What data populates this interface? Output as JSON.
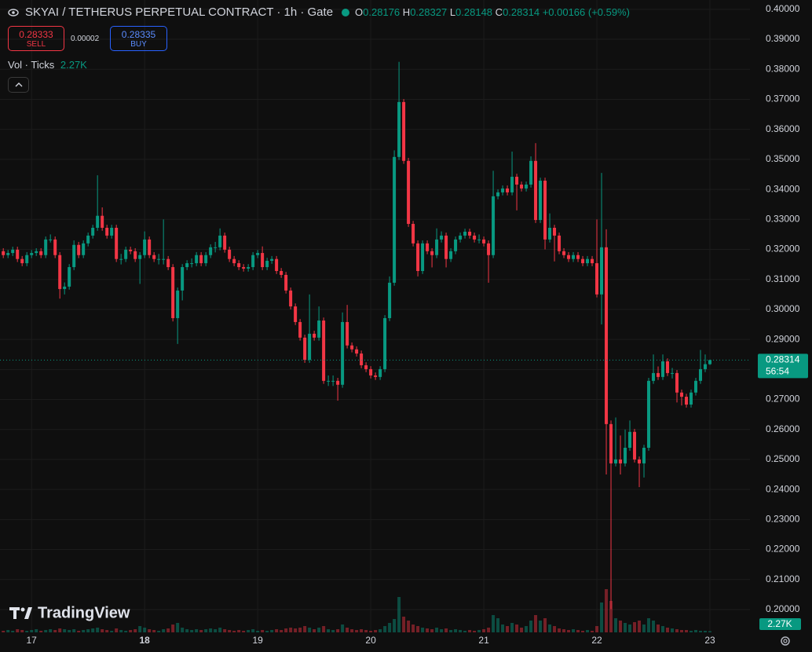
{
  "chart_data": {
    "type": "candlestick",
    "title": "SKYAI / TETHERUS PERPETUAL CONTRACT · 1h · Gate",
    "ohlc_labels": [
      "O",
      "H",
      "L",
      "C"
    ],
    "change": "+0.00166 (+0.59%)",
    "sell": {
      "price": 0.28333,
      "label": "SELL"
    },
    "spread": 2e-05,
    "buy": {
      "price": 0.28335,
      "label": "BUY"
    },
    "volume_title": "Vol · Ticks",
    "volume_label": "2.27K",
    "countdown": "56:54",
    "watermark": "TradingView",
    "up_color": "#089981",
    "down_color": "#f23645",
    "grid": true,
    "xlim": [
      -6.7,
      152.5
    ],
    "xticks": [
      {
        "value": 0,
        "label": "17"
      },
      {
        "value": 24,
        "label": "18"
      },
      {
        "value": 48,
        "label": "19"
      },
      {
        "value": 72,
        "label": "20"
      },
      {
        "value": 96,
        "label": "21"
      },
      {
        "value": 120,
        "label": "22"
      },
      {
        "value": 144,
        "label": "23"
      }
    ],
    "ylim": [
      0.1924,
      0.4031
    ],
    "yticks": [
      {
        "value": 0.2,
        "label": "0.20000"
      },
      {
        "value": 0.21,
        "label": "0.21000"
      },
      {
        "value": 0.22,
        "label": "0.22000"
      },
      {
        "value": 0.23,
        "label": "0.23000"
      },
      {
        "value": 0.24,
        "label": "0.24000"
      },
      {
        "value": 0.25,
        "label": "0.25000"
      },
      {
        "value": 0.26,
        "label": "0.26000"
      },
      {
        "value": 0.27,
        "label": "0.27000"
      },
      {
        "value": 0.28,
        "label": "0.28000"
      },
      {
        "value": 0.29,
        "label": "0.29000"
      },
      {
        "value": 0.3,
        "label": "0.30000"
      },
      {
        "value": 0.31,
        "label": "0.31000"
      },
      {
        "value": 0.32,
        "label": "0.32000"
      },
      {
        "value": 0.33,
        "label": "0.33000"
      },
      {
        "value": 0.34,
        "label": "0.34000"
      },
      {
        "value": 0.35,
        "label": "0.35000"
      },
      {
        "value": 0.36,
        "label": "0.36000"
      },
      {
        "value": 0.37,
        "label": "0.37000"
      },
      {
        "value": 0.38,
        "label": "0.38000"
      },
      {
        "value": 0.39,
        "label": "0.39000"
      },
      {
        "value": 0.4,
        "label": "0.40000"
      }
    ],
    "x": [
      -6,
      -5,
      -4,
      -3,
      -2,
      -1,
      0,
      1,
      2,
      3,
      4,
      5,
      6,
      7,
      8,
      9,
      10,
      11,
      12,
      13,
      14,
      15,
      16,
      17,
      18,
      19,
      20,
      21,
      22,
      23,
      24,
      25,
      26,
      27,
      28,
      29,
      30,
      31,
      32,
      33,
      34,
      35,
      36,
      37,
      38,
      39,
      40,
      41,
      42,
      43,
      44,
      45,
      46,
      47,
      48,
      49,
      50,
      51,
      52,
      53,
      54,
      55,
      56,
      57,
      58,
      59,
      60,
      61,
      62,
      63,
      64,
      65,
      66,
      67,
      68,
      69,
      70,
      71,
      72,
      73,
      74,
      75,
      76,
      77,
      78,
      79,
      80,
      81,
      82,
      83,
      84,
      85,
      86,
      87,
      88,
      89,
      90,
      91,
      92,
      93,
      94,
      95,
      96,
      97,
      98,
      99,
      100,
      101,
      102,
      103,
      104,
      105,
      106,
      107,
      108,
      109,
      110,
      111,
      112,
      113,
      114,
      115,
      116,
      117,
      118,
      119,
      120,
      121,
      122,
      123,
      124,
      125,
      126,
      127,
      128,
      129,
      130,
      131,
      132,
      133,
      134,
      135,
      136,
      137,
      138,
      139,
      140,
      141,
      142,
      143,
      144
    ],
    "open": [
      0.3194,
      0.3181,
      0.3188,
      0.3199,
      0.3168,
      0.3154,
      0.3181,
      0.3188,
      0.3194,
      0.3181,
      0.3233,
      0.3233,
      0.3181,
      0.3068,
      0.3076,
      0.3141,
      0.3215,
      0.3181,
      0.322,
      0.3246,
      0.3272,
      0.3312,
      0.3272,
      0.3246,
      0.3272,
      0.3168,
      0.3168,
      0.3199,
      0.3194,
      0.3168,
      0.3181,
      0.3233,
      0.3181,
      0.3168,
      0.3168,
      0.3168,
      0.3141,
      0.2971,
      0.3063,
      0.3141,
      0.3154,
      0.3154,
      0.3181,
      0.3154,
      0.3181,
      0.3207,
      0.3207,
      0.3246,
      0.3199,
      0.3168,
      0.3154,
      0.3141,
      0.3136,
      0.3141,
      0.3181,
      0.3188,
      0.3141,
      0.3162,
      0.3168,
      0.3128,
      0.3115,
      0.3063,
      0.301,
      0.2958,
      0.2906,
      0.2832,
      0.2919,
      0.2906,
      0.2963,
      0.2762,
      0.2762,
      0.2762,
      0.2749,
      0.2958,
      0.288,
      0.2867,
      0.2853,
      0.2814,
      0.2801,
      0.278,
      0.2775,
      0.2801,
      0.2971,
      0.3089,
      0.3508,
      0.3691,
      0.3495,
      0.3285,
      0.322,
      0.3128,
      0.322,
      0.3194,
      0.3181,
      0.3233,
      0.3246,
      0.3168,
      0.3194,
      0.3233,
      0.3246,
      0.3259,
      0.3246,
      0.3233,
      0.3233,
      0.322,
      0.3181,
      0.3377,
      0.339,
      0.3403,
      0.339,
      0.3442,
      0.3416,
      0.3403,
      0.3416,
      0.3495,
      0.3298,
      0.3429,
      0.3233,
      0.3272,
      0.3246,
      0.3194,
      0.3181,
      0.3168,
      0.3181,
      0.3168,
      0.3154,
      0.3168,
      0.3154,
      0.305,
      0.3207,
      0.2618,
      0.2487,
      0.25,
      0.2487,
      0.2539,
      0.2592,
      0.25,
      0.2487,
      0.2539,
      0.2762,
      0.2788,
      0.2775,
      0.2827,
      0.2788,
      0.2788,
      0.2723,
      0.2709,
      0.2683,
      0.2723,
      0.2762,
      0.2801,
      0.28176
    ],
    "high": [
      0.3204,
      0.3198,
      0.3209,
      0.3209,
      0.3178,
      0.3191,
      0.3198,
      0.3204,
      0.3204,
      0.3243,
      0.325,
      0.3243,
      0.3191,
      0.309,
      0.3151,
      0.323,
      0.3225,
      0.323,
      0.3256,
      0.3282,
      0.3447,
      0.334,
      0.3282,
      0.3282,
      0.3282,
      0.3185,
      0.3209,
      0.3209,
      0.3204,
      0.3191,
      0.326,
      0.3243,
      0.3191,
      0.3185,
      0.33,
      0.3178,
      0.3151,
      0.3073,
      0.3151,
      0.3164,
      0.317,
      0.3191,
      0.3191,
      0.3191,
      0.3217,
      0.3225,
      0.327,
      0.3256,
      0.3209,
      0.3178,
      0.3164,
      0.3151,
      0.3151,
      0.3191,
      0.3198,
      0.321,
      0.3172,
      0.3178,
      0.3178,
      0.3138,
      0.3125,
      0.3073,
      0.302,
      0.2968,
      0.2916,
      0.305,
      0.2929,
      0.301,
      0.2973,
      0.278,
      0.278,
      0.2772,
      0.299,
      0.3015,
      0.289,
      0.2877,
      0.2863,
      0.2824,
      0.2811,
      0.279,
      0.2811,
      0.2981,
      0.311,
      0.353,
      0.3825,
      0.3701,
      0.3505,
      0.3295,
      0.323,
      0.323,
      0.323,
      0.3204,
      0.327,
      0.326,
      0.3256,
      0.3204,
      0.3243,
      0.3256,
      0.3269,
      0.3269,
      0.3256,
      0.325,
      0.3243,
      0.323,
      0.3462,
      0.34,
      0.3413,
      0.3413,
      0.3526,
      0.3452,
      0.3426,
      0.3426,
      0.351,
      0.3554,
      0.3439,
      0.3439,
      0.332,
      0.3282,
      0.3256,
      0.3204,
      0.3191,
      0.3191,
      0.3191,
      0.3178,
      0.3178,
      0.3178,
      0.33,
      0.3455,
      0.3267,
      0.263,
      0.264,
      0.258,
      0.26,
      0.263,
      0.2602,
      0.251,
      0.2549,
      0.2772,
      0.285,
      0.281,
      0.285,
      0.2837,
      0.2805,
      0.2798,
      0.2733,
      0.2719,
      0.2733,
      0.2772,
      0.2865,
      0.285,
      0.28327
    ],
    "low": [
      0.3171,
      0.3171,
      0.3178,
      0.3158,
      0.3144,
      0.3144,
      0.3171,
      0.3178,
      0.3171,
      0.3171,
      0.3223,
      0.3171,
      0.3036,
      0.305,
      0.3066,
      0.3131,
      0.3171,
      0.3171,
      0.321,
      0.3236,
      0.3262,
      0.3262,
      0.3236,
      0.3236,
      0.3158,
      0.315,
      0.3158,
      0.3184,
      0.3158,
      0.3085,
      0.3171,
      0.3171,
      0.3158,
      0.315,
      0.315,
      0.3131,
      0.296,
      0.2885,
      0.303,
      0.3131,
      0.314,
      0.3144,
      0.3144,
      0.3144,
      0.3171,
      0.319,
      0.3197,
      0.3189,
      0.3158,
      0.3144,
      0.3131,
      0.3126,
      0.3126,
      0.3131,
      0.3171,
      0.3131,
      0.3131,
      0.3152,
      0.3118,
      0.3105,
      0.3053,
      0.3,
      0.2948,
      0.2896,
      0.2822,
      0.2822,
      0.2896,
      0.2896,
      0.2752,
      0.2745,
      0.2745,
      0.2696,
      0.2739,
      0.287,
      0.2857,
      0.2843,
      0.2804,
      0.2791,
      0.277,
      0.2765,
      0.2765,
      0.2791,
      0.2961,
      0.3079,
      0.3498,
      0.3485,
      0.3275,
      0.321,
      0.311,
      0.3118,
      0.3184,
      0.314,
      0.3171,
      0.3223,
      0.314,
      0.3158,
      0.3184,
      0.3223,
      0.3236,
      0.3236,
      0.3223,
      0.322,
      0.321,
      0.3089,
      0.3171,
      0.3367,
      0.338,
      0.338,
      0.338,
      0.333,
      0.3393,
      0.3393,
      0.3406,
      0.3288,
      0.3288,
      0.32,
      0.3223,
      0.316,
      0.3184,
      0.3171,
      0.3158,
      0.3158,
      0.3158,
      0.3144,
      0.3144,
      0.3144,
      0.304,
      0.295,
      0.245,
      0.2002,
      0.2477,
      0.245,
      0.2477,
      0.2529,
      0.249,
      0.2408,
      0.244,
      0.2529,
      0.2752,
      0.2765,
      0.2765,
      0.2778,
      0.277,
      0.269,
      0.268,
      0.2673,
      0.2673,
      0.2713,
      0.2752,
      0.2791,
      0.28148
    ],
    "close": [
      0.3181,
      0.3188,
      0.3199,
      0.3168,
      0.3154,
      0.3181,
      0.3188,
      0.3194,
      0.3181,
      0.3233,
      0.3233,
      0.3181,
      0.3068,
      0.3076,
      0.3141,
      0.3215,
      0.3181,
      0.322,
      0.3246,
      0.3272,
      0.3312,
      0.3272,
      0.3246,
      0.3272,
      0.3168,
      0.3168,
      0.3199,
      0.3194,
      0.3168,
      0.3181,
      0.3233,
      0.3181,
      0.3168,
      0.3168,
      0.3168,
      0.3141,
      0.2971,
      0.3063,
      0.3141,
      0.3154,
      0.3154,
      0.3181,
      0.3154,
      0.3181,
      0.3207,
      0.3207,
      0.3246,
      0.3199,
      0.3168,
      0.3154,
      0.3141,
      0.3136,
      0.3141,
      0.3181,
      0.3188,
      0.3141,
      0.3162,
      0.3168,
      0.3128,
      0.3115,
      0.3063,
      0.301,
      0.2958,
      0.2906,
      0.2832,
      0.2919,
      0.2906,
      0.2963,
      0.2762,
      0.2762,
      0.2762,
      0.2749,
      0.2958,
      0.288,
      0.2867,
      0.2853,
      0.2814,
      0.2801,
      0.278,
      0.2775,
      0.2801,
      0.2971,
      0.3089,
      0.3508,
      0.3691,
      0.3495,
      0.3285,
      0.322,
      0.3128,
      0.322,
      0.3194,
      0.3181,
      0.3233,
      0.3246,
      0.3168,
      0.3194,
      0.3233,
      0.3246,
      0.3259,
      0.3246,
      0.3233,
      0.3233,
      0.322,
      0.3181,
      0.3377,
      0.339,
      0.3403,
      0.339,
      0.3442,
      0.3416,
      0.3403,
      0.3416,
      0.3495,
      0.3298,
      0.3429,
      0.3233,
      0.3272,
      0.3246,
      0.3194,
      0.3181,
      0.3168,
      0.3181,
      0.3168,
      0.3154,
      0.3168,
      0.3154,
      0.305,
      0.3207,
      0.2618,
      0.2487,
      0.25,
      0.2487,
      0.2539,
      0.2592,
      0.25,
      0.2487,
      0.2539,
      0.2762,
      0.2788,
      0.2775,
      0.2827,
      0.2788,
      0.2788,
      0.2723,
      0.2709,
      0.2683,
      0.2723,
      0.2762,
      0.2801,
      0.28176,
      0.28314
    ],
    "volume": [
      3000,
      4500,
      3000,
      6000,
      4500,
      3000,
      4500,
      6000,
      3000,
      4500,
      6000,
      4500,
      7500,
      6000,
      4500,
      6000,
      3000,
      4500,
      6000,
      7500,
      9000,
      6000,
      4500,
      3000,
      7500,
      4500,
      3000,
      4500,
      6000,
      12000,
      9000,
      6000,
      4500,
      3000,
      6000,
      7500,
      15000,
      18000,
      9000,
      6000,
      4500,
      6000,
      4500,
      6000,
      7500,
      6000,
      9000,
      6000,
      4500,
      3000,
      4500,
      3000,
      4500,
      6000,
      3000,
      4500,
      3000,
      4500,
      6000,
      4500,
      7500,
      9000,
      7500,
      9000,
      12000,
      9000,
      6000,
      9000,
      12000,
      6000,
      4500,
      6000,
      15000,
      9000,
      6000,
      4500,
      6000,
      4500,
      3000,
      4500,
      6000,
      12000,
      18000,
      25500,
      67500,
      30000,
      22500,
      15000,
      12000,
      9000,
      7500,
      6000,
      9000,
      6000,
      7500,
      4500,
      6000,
      4500,
      3000,
      4500,
      3000,
      4500,
      6000,
      9000,
      33000,
      27000,
      15000,
      12000,
      18000,
      15000,
      9000,
      12000,
      22500,
      33000,
      22500,
      27000,
      15000,
      12000,
      7500,
      6000,
      4500,
      6000,
      4500,
      3000,
      4500,
      3000,
      12000,
      57000,
      82500,
      60000,
      27000,
      22500,
      18000,
      15000,
      19500,
      22500,
      15000,
      27000,
      22500,
      15000,
      12000,
      9000,
      7500,
      6000,
      4500,
      4500,
      3000,
      4500,
      3000,
      3000,
      2270
    ]
  }
}
